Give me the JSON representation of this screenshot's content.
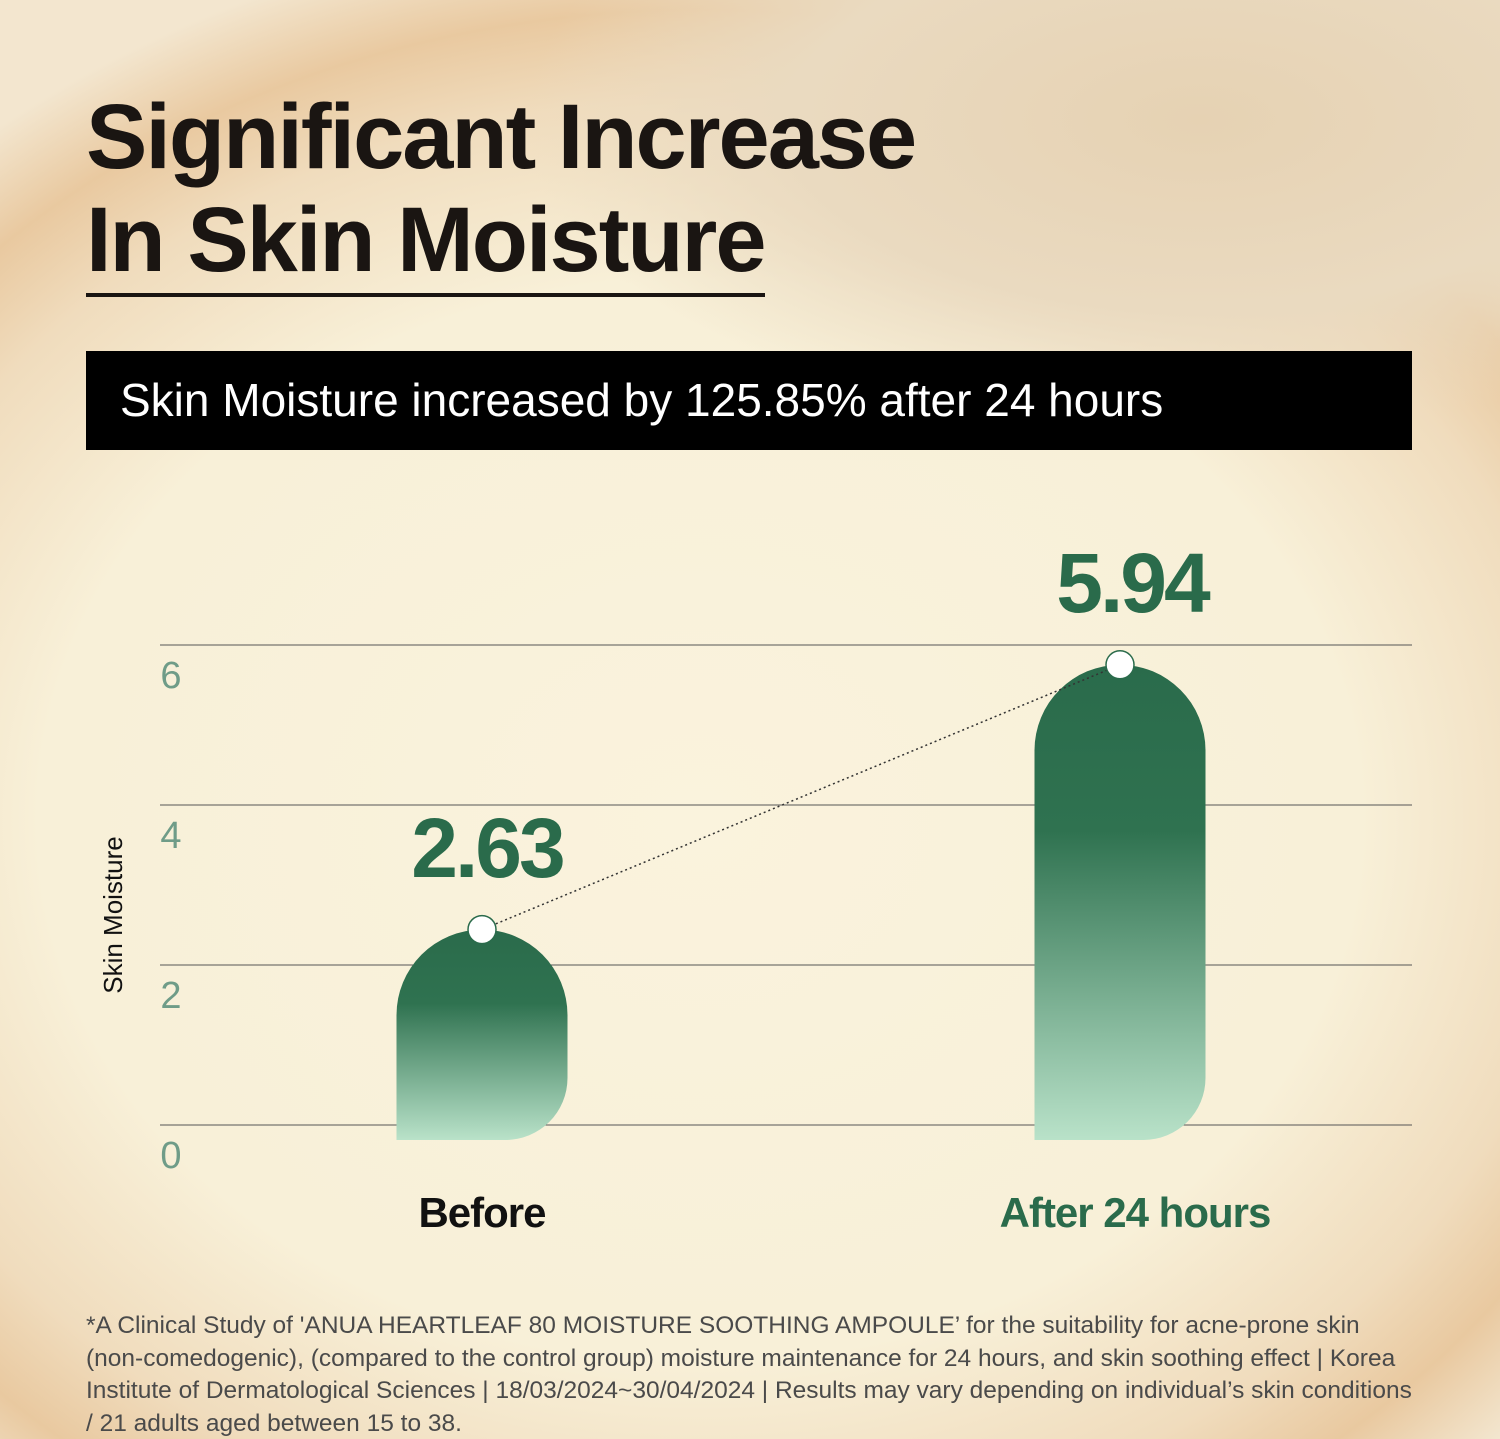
{
  "chart_data": {
    "type": "bar",
    "title": [
      "Significant Increase",
      "In Skin Moisture"
    ],
    "subtitle": "Skin Moisture increased by 125.85% after 24 hours",
    "y_axis_label": "Skin Moisture",
    "categories": [
      "Before",
      "After 24 hours"
    ],
    "category_colors": [
      "#111111",
      "#2a6b4b"
    ],
    "values": [
      2.63,
      5.94
    ],
    "value_label_color": "#2a6b4b",
    "ylim": [
      0,
      6.5
    ],
    "yticks": [
      0,
      2,
      4,
      6
    ],
    "grid": true,
    "footnote": "*A Clinical Study of 'ANUA HEARTLEAF 80 MOISTURE SOOTHING AMPOULE’ for the suitability for acne-prone skin (non-comedogenic), (compared to the control group) moisture maintenance for 24 hours, and skin soothing effect | Korea Institute of Dermatological Sciences | 18/03/2024~30/04/2024 | Results may vary depending on individual’s skin conditions / 21 adults aged between 15 to 38."
  }
}
